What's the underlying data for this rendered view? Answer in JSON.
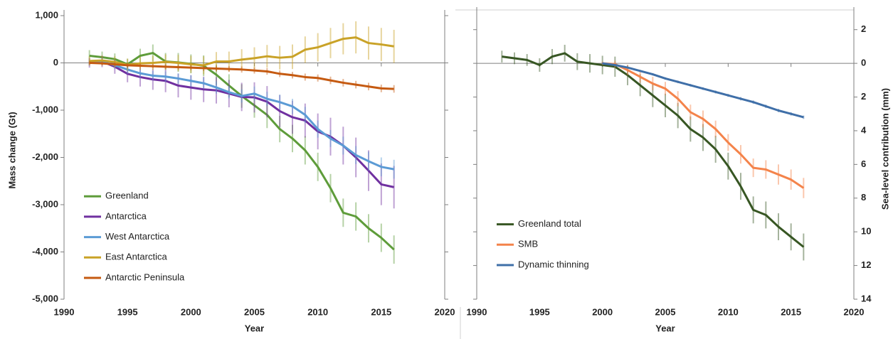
{
  "chart_data": [
    {
      "type": "line",
      "x_label": "Year",
      "y_label": "Mass change (Gt)",
      "y_axis_side": "left",
      "legend": "lower left",
      "x": [
        1992,
        1993,
        1994,
        1995,
        1996,
        1997,
        1998,
        1999,
        2000,
        2001,
        2002,
        2003,
        2004,
        2005,
        2006,
        2007,
        2008,
        2009,
        2010,
        2011,
        2012,
        2013,
        2014,
        2015,
        2016
      ],
      "xlim": [
        1990,
        2020
      ],
      "xticks": [
        1990,
        1995,
        2000,
        2005,
        2010,
        2015,
        2020
      ],
      "ylim": [
        -5000,
        1000
      ],
      "yticks": [
        {
          "value": -5000,
          "label": "-5,000"
        },
        {
          "value": -4000,
          "label": "-4,000"
        },
        {
          "value": -3000,
          "label": "-3,000"
        },
        {
          "value": -2000,
          "label": "-2,000"
        },
        {
          "value": -1000,
          "label": "-1,000"
        },
        0,
        {
          "value": 1000,
          "label": "1,000"
        }
      ],
      "series": [
        {
          "name": "Greenland",
          "color": "#5e9c3a",
          "values": [
            150,
            120,
            80,
            -30,
            150,
            210,
            30,
            10,
            -20,
            -60,
            -250,
            -480,
            -700,
            -900,
            -1100,
            -1400,
            -1600,
            -1850,
            -2200,
            -2650,
            -3170,
            -3250,
            -3500,
            -3700,
            -3950
          ],
          "errors": [
            120,
            120,
            120,
            120,
            150,
            180,
            180,
            200,
            200,
            220,
            220,
            240,
            250,
            260,
            280,
            280,
            290,
            300,
            300,
            300,
            300,
            300,
            300,
            300,
            300
          ]
        },
        {
          "name": "Antarctica",
          "color": "#7030a0",
          "values": [
            0,
            30,
            -80,
            -230,
            -300,
            -350,
            -380,
            -480,
            -520,
            -560,
            -580,
            -650,
            -720,
            -730,
            -820,
            -1020,
            -1150,
            -1220,
            -1450,
            -1560,
            -1750,
            -2000,
            -2280,
            -2570,
            -2630
          ],
          "errors": [
            100,
            120,
            150,
            180,
            200,
            220,
            240,
            250,
            260,
            270,
            280,
            290,
            300,
            320,
            330,
            340,
            350,
            360,
            380,
            400,
            400,
            420,
            430,
            440,
            450
          ]
        },
        {
          "name": "West Antarctica",
          "color": "#5b9bd5",
          "values": [
            0,
            30,
            -50,
            -140,
            -220,
            -270,
            -290,
            -330,
            -380,
            -430,
            -520,
            -620,
            -700,
            -650,
            -760,
            -830,
            -920,
            -1100,
            -1400,
            -1600,
            -1750,
            -1950,
            -2080,
            -2200,
            -2250
          ],
          "errors": [
            60,
            70,
            80,
            90,
            100,
            100,
            110,
            110,
            120,
            120,
            130,
            130,
            140,
            150,
            150,
            160,
            160,
            170,
            180,
            180,
            190,
            190,
            200,
            200,
            200
          ]
        },
        {
          "name": "East Antarctica",
          "color": "#c9a227",
          "values": [
            40,
            50,
            20,
            -40,
            -10,
            0,
            20,
            0,
            -30,
            -50,
            30,
            30,
            70,
            100,
            140,
            110,
            130,
            280,
            330,
            420,
            510,
            540,
            420,
            390,
            350
          ],
          "errors": [
            100,
            110,
            120,
            130,
            140,
            150,
            160,
            170,
            180,
            190,
            200,
            210,
            220,
            230,
            240,
            250,
            260,
            280,
            300,
            320,
            330,
            340,
            350,
            350,
            350
          ]
        },
        {
          "name": "Antarctic Peninsula",
          "color": "#c55a11",
          "values": [
            0,
            -10,
            -30,
            -50,
            -60,
            -70,
            -80,
            -90,
            -100,
            -110,
            -120,
            -130,
            -140,
            -160,
            -180,
            -230,
            -260,
            -300,
            -320,
            -370,
            -420,
            -460,
            -500,
            -540,
            -550
          ],
          "errors": [
            40,
            40,
            45,
            45,
            50,
            50,
            50,
            55,
            55,
            60,
            60,
            60,
            65,
            65,
            70,
            70,
            70,
            75,
            75,
            80,
            80,
            80,
            80,
            80,
            80
          ]
        }
      ]
    },
    {
      "type": "line",
      "x_label": "Year",
      "y_label": "Sea-level contribution (mm)",
      "y_axis_side": "right",
      "y_inverted": true,
      "legend": "lower left",
      "x": [
        1992,
        1993,
        1994,
        1995,
        1996,
        1997,
        1998,
        1999,
        2000,
        2001,
        2002,
        2003,
        2004,
        2005,
        2006,
        2007,
        2008,
        2009,
        2010,
        2011,
        2012,
        2013,
        2014,
        2015,
        2016
      ],
      "xlim": [
        1990,
        2020
      ],
      "xticks": [
        1990,
        1995,
        2000,
        2005,
        2010,
        2015,
        2020
      ],
      "ylim": [
        -3,
        14
      ],
      "yticks": [
        {
          "value": -2,
          "label": "2"
        },
        0,
        2,
        4,
        6,
        8,
        10,
        12,
        14
      ],
      "series": [
        {
          "name": "Greenland total",
          "color": "#375623",
          "values": [
            -0.4,
            -0.3,
            -0.2,
            0.1,
            -0.4,
            -0.6,
            -0.1,
            0,
            0.1,
            0.2,
            0.7,
            1.3,
            1.9,
            2.5,
            3.1,
            3.9,
            4.4,
            5.1,
            6.1,
            7.3,
            8.7,
            9.0,
            9.7,
            10.3,
            10.9
          ],
          "errors": [
            0.35,
            0.35,
            0.35,
            0.4,
            0.45,
            0.5,
            0.5,
            0.55,
            0.55,
            0.6,
            0.6,
            0.65,
            0.7,
            0.7,
            0.75,
            0.75,
            0.8,
            0.8,
            0.8,
            0.8,
            0.8,
            0.8,
            0.8,
            0.8,
            0.8
          ]
        },
        {
          "name": "SMB",
          "color": "#f4834a",
          "values": [
            null,
            null,
            null,
            null,
            null,
            null,
            null,
            null,
            0,
            0.05,
            0.4,
            0.8,
            1.2,
            1.5,
            2.1,
            2.9,
            3.3,
            3.9,
            4.7,
            5.4,
            6.2,
            6.3,
            6.6,
            6.9,
            7.4
          ],
          "errors": [
            null,
            null,
            null,
            null,
            null,
            null,
            null,
            null,
            0.1,
            0.2,
            0.3,
            0.35,
            0.4,
            0.4,
            0.45,
            0.45,
            0.5,
            0.5,
            0.5,
            0.55,
            0.55,
            0.55,
            0.6,
            0.6,
            0.6
          ]
        },
        {
          "name": "Dynamic thinning",
          "color": "#3f6fa8",
          "values": [
            null,
            null,
            null,
            null,
            null,
            null,
            null,
            null,
            0,
            0.1,
            0.25,
            0.45,
            0.65,
            0.9,
            1.1,
            1.3,
            1.5,
            1.7,
            1.9,
            2.1,
            2.3,
            2.55,
            2.8,
            3.0,
            3.2
          ],
          "errors": [
            null,
            null,
            null,
            null,
            null,
            null,
            null,
            null,
            0.05,
            0.05,
            0.06,
            0.06,
            0.07,
            0.07,
            0.08,
            0.08,
            0.08,
            0.09,
            0.09,
            0.1,
            0.1,
            0.1,
            0.1,
            0.1,
            0.1
          ]
        }
      ]
    }
  ]
}
